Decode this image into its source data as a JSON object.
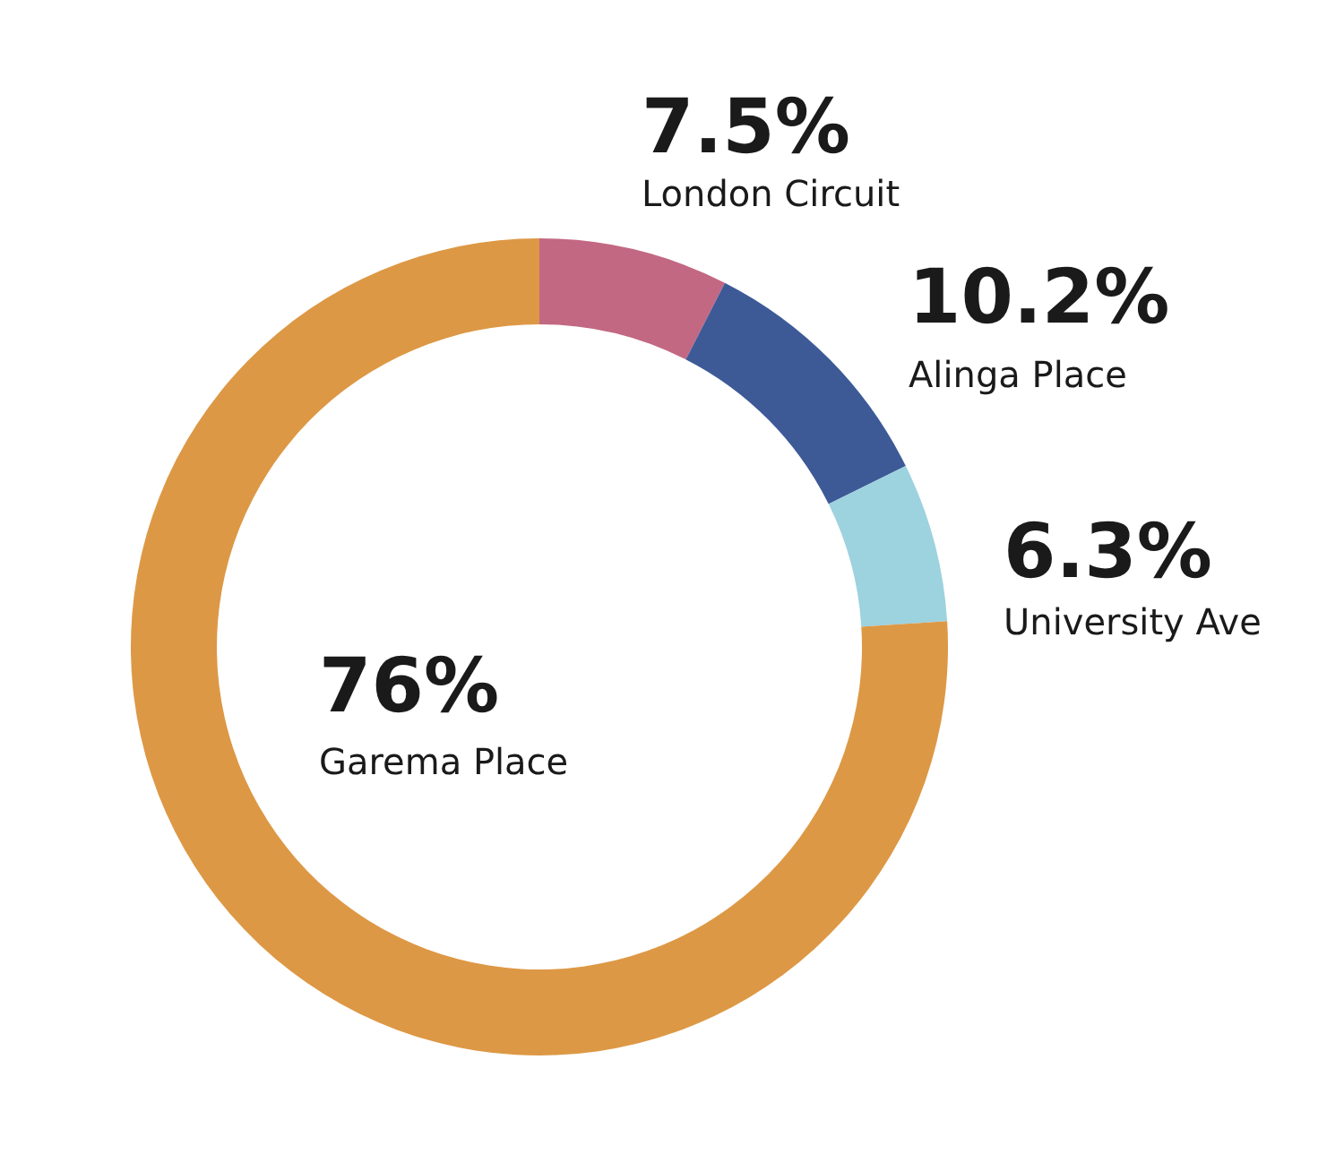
{
  "chart_data": {
    "type": "donut",
    "categories": [
      "London Circuit",
      "Alinga Place",
      "University Ave",
      "Garema Place"
    ],
    "values": [
      7.5,
      10.2,
      6.3,
      76
    ],
    "value_labels": [
      "7.5%",
      "10.2%",
      "6.3%",
      "76%"
    ],
    "colors": [
      "#c26883",
      "#3d5a97",
      "#9dd2df",
      "#dd9845"
    ]
  }
}
